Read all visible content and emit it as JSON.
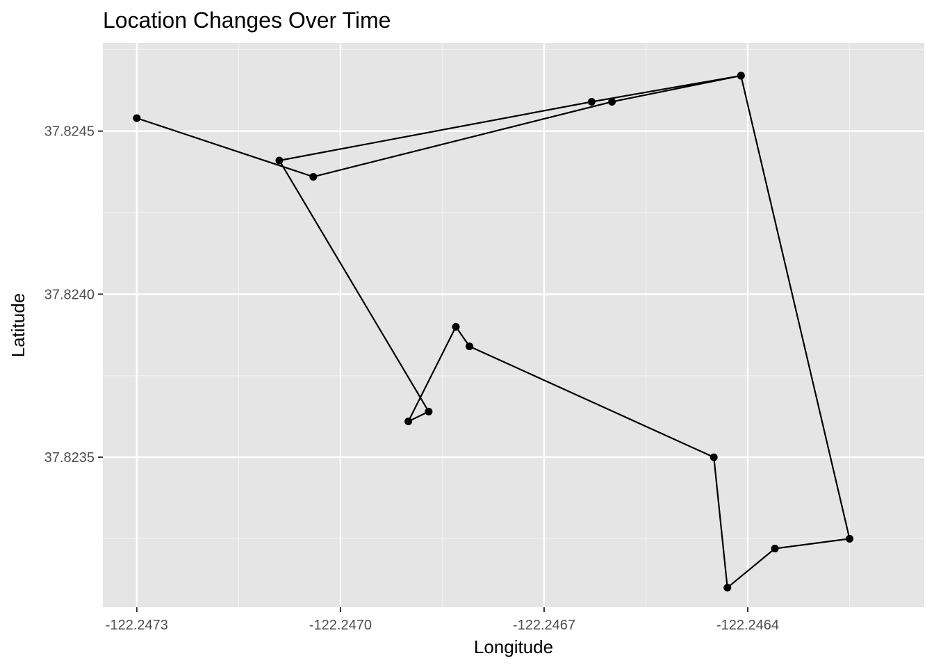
{
  "colors": {
    "panel_background": "#e5e5e5",
    "grid_major": "#ffffff",
    "grid_minor": "#f2f2f2",
    "tick": "#333333",
    "tick_text": "#4d4d4d",
    "path": "#000000",
    "point": "#000000"
  },
  "chart_data": {
    "type": "line",
    "title": "Location Changes Over Time",
    "xlabel": "Longitude",
    "ylabel": "Latitude",
    "xlim": [
      -122.24735,
      -122.24614
    ],
    "ylim": [
      37.82304,
      37.82477
    ],
    "x_ticks": [
      -122.2473,
      -122.247,
      -122.2467,
      -122.2464
    ],
    "x_tick_labels": [
      "-122.2473",
      "-122.2470",
      "-122.2467",
      "-122.2464"
    ],
    "x_minor": [
      -122.24715,
      -122.24685,
      -122.24655,
      -122.24625
    ],
    "y_ticks": [
      37.8235,
      37.824,
      37.8245
    ],
    "y_tick_labels": [
      "37.8235",
      "37.8240",
      "37.8245"
    ],
    "y_minor": [
      37.82325,
      37.82375,
      37.82425,
      37.82475
    ],
    "grid": true,
    "legend": "none",
    "series": [
      {
        "x": [
          -122.2473,
          -122.24704,
          -122.2466,
          -122.24641,
          -122.24625,
          -122.24636,
          -122.24643,
          -122.24645,
          -122.24681,
          -122.24683,
          -122.2469,
          -122.24687,
          -122.24709,
          -122.24663,
          -122.24641
        ],
        "y": [
          37.82454,
          37.82436,
          37.82459,
          37.82467,
          37.82325,
          37.82322,
          37.8231,
          37.8235,
          37.82384,
          37.8239,
          37.82361,
          37.82364,
          37.82441,
          37.82459,
          37.82467
        ],
        "order": "path"
      }
    ]
  }
}
